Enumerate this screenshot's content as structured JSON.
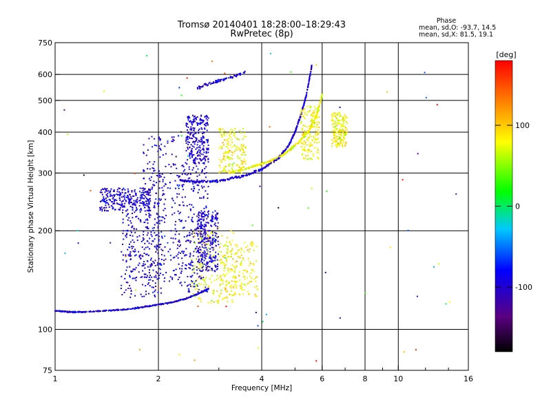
{
  "chart_data": {
    "type": "scatter",
    "title": "Tromsø 20140401 18:28:00–18:29:43",
    "subtitle": "RwPretec (8p)",
    "stats": {
      "heading": "Phase",
      "line_o": "mean, sd,O: -93.7, 14.5",
      "line_x": "mean, sd,X:  81.5, 19.1"
    },
    "xlabel": "Frequency [MHz]",
    "ylabel": "Stationary phase Virtual Height [km]",
    "x_scale": "log",
    "y_scale": "log",
    "xlim": [
      1,
      16
    ],
    "ylim": [
      75,
      750
    ],
    "x_ticks": [
      1,
      2,
      4,
      6,
      8,
      10,
      16
    ],
    "x_minor_ticks": [
      3,
      5,
      7,
      9,
      12,
      14
    ],
    "y_ticks": [
      75,
      100,
      200,
      300,
      400,
      500,
      600,
      750
    ],
    "grid": true,
    "colorbar": {
      "label": "[deg]",
      "range": [
        -180,
        180
      ],
      "ticks": [
        -100,
        0,
        100
      ],
      "colormap": "rainbow: black-purple-blue-cyan-green-yellow-orange-red"
    },
    "series": [
      {
        "mode": "O",
        "color_value": -93.7,
        "trace": [
          [
            1.0,
            114
          ],
          [
            1.1,
            113
          ],
          [
            1.2,
            113
          ],
          [
            1.4,
            114
          ],
          [
            1.6,
            115
          ],
          [
            1.8,
            117
          ],
          [
            2.0,
            119
          ],
          [
            2.2,
            121
          ],
          [
            2.4,
            124
          ],
          [
            2.6,
            128
          ],
          [
            2.8,
            133
          ]
        ],
        "clusters": [
          {
            "f": [
              1.55,
              2.05
            ],
            "h": [
              125,
              250
            ]
          },
          {
            "f": [
              1.8,
              2.3
            ],
            "h": [
              140,
              390
            ]
          },
          {
            "f": [
              2.3,
              2.8
            ],
            "h": [
              130,
              320
            ]
          },
          {
            "f": [
              2.6,
              3.0
            ],
            "h": [
              150,
              230
            ]
          },
          {
            "f": [
              1.35,
              1.9
            ],
            "h": [
              230,
              270
            ]
          },
          {
            "f": [
              2.4,
              2.8
            ],
            "h": [
              320,
              450
            ]
          }
        ],
        "upper_trace": [
          [
            2.3,
            285
          ],
          [
            2.6,
            282
          ],
          [
            3.0,
            284
          ],
          [
            3.5,
            293
          ],
          [
            4.0,
            308
          ],
          [
            4.5,
            335
          ],
          [
            4.8,
            365
          ],
          [
            5.0,
            400
          ],
          [
            5.2,
            450
          ],
          [
            5.4,
            520
          ],
          [
            5.6,
            640
          ]
        ],
        "high_trace": [
          [
            2.6,
            545
          ],
          [
            2.8,
            560
          ],
          [
            3.0,
            575
          ],
          [
            3.3,
            590
          ],
          [
            3.6,
            610
          ]
        ]
      },
      {
        "mode": "X",
        "color_value": 81.5,
        "clusters": [
          {
            "f": [
              2.5,
              3.4
            ],
            "h": [
              120,
              200
            ]
          },
          {
            "f": [
              3.0,
              3.9
            ],
            "h": [
              125,
              185
            ]
          },
          {
            "f": [
              3.0,
              3.6
            ],
            "h": [
              300,
              410
            ]
          },
          {
            "f": [
              5.2,
              5.9
            ],
            "h": [
              330,
              480
            ]
          },
          {
            "f": [
              6.4,
              7.1
            ],
            "h": [
              360,
              460
            ]
          }
        ],
        "upper_trace": [
          [
            3.2,
            300
          ],
          [
            3.7,
            312
          ],
          [
            4.2,
            325
          ],
          [
            4.7,
            345
          ],
          [
            5.1,
            370
          ],
          [
            5.5,
            405
          ],
          [
            5.8,
            455
          ],
          [
            6.0,
            520
          ]
        ]
      }
    ]
  },
  "seed_note_unused": null
}
